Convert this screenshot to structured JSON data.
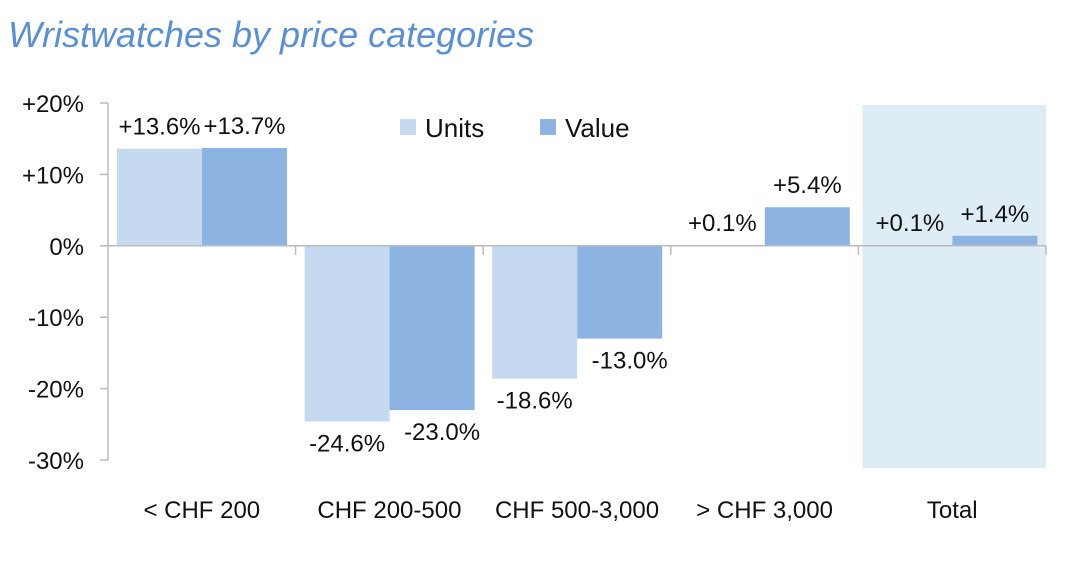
{
  "chart_data": {
    "type": "bar",
    "title": "Wristwatches by price categories",
    "xlabel": "",
    "ylabel": "",
    "ylim": [
      -30,
      20
    ],
    "yticks": [
      20,
      10,
      0,
      -10,
      -20,
      -30
    ],
    "ytick_labels": [
      "+20%",
      "+10%",
      "0%",
      "-10%",
      "-20%",
      "-30%"
    ],
    "categories": [
      "< CHF 200",
      "CHF 200-500",
      "CHF 500-3,000",
      "> CHF 3,000",
      "Total"
    ],
    "series": [
      {
        "name": "Units",
        "color": "#c5d9f0",
        "values": [
          13.6,
          -24.6,
          -18.6,
          0.1,
          0.1
        ],
        "labels": [
          "+13.6%",
          "-24.6%",
          "-18.6%",
          "+0.1%",
          "+0.1%"
        ]
      },
      {
        "name": "Value",
        "color": "#8db3e2",
        "values": [
          13.7,
          -23.0,
          -13.0,
          5.4,
          1.4
        ],
        "labels": [
          "+13.7%",
          "-23.0%",
          "-13.0%",
          "+5.4%",
          "+1.4%"
        ]
      }
    ],
    "highlighted_category": "Total",
    "highlight_color": "#deecf5",
    "legend_position": "top-center",
    "grid": false
  }
}
